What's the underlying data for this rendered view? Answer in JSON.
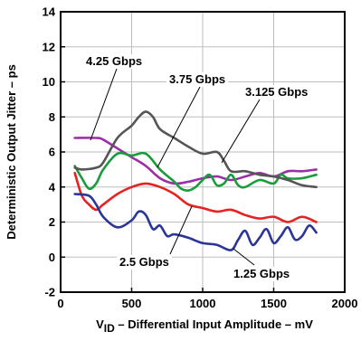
{
  "chart_data": {
    "type": "line",
    "xlabel": {
      "prefix": "V",
      "subscript": "ID",
      "suffix": " – Differential Input Amplitude – mV"
    },
    "ylabel": "Deterministic Output Jitter – ps",
    "xlim": [
      0,
      2000
    ],
    "ylim": [
      -2,
      14
    ],
    "xticks": [
      "0",
      "500",
      "1000",
      "1500",
      "2000"
    ],
    "yticks": [
      "-2",
      "0",
      "2",
      "4",
      "6",
      "8",
      "10",
      "12",
      "14"
    ],
    "xtick_values": [
      0,
      500,
      1000,
      1500,
      2000
    ],
    "ytick_values": [
      -2,
      0,
      2,
      4,
      6,
      8,
      10,
      12,
      14
    ],
    "grid": true,
    "series": [
      {
        "name": "4.25 Gbps",
        "color": "#9b2fa6",
        "x": [
          100,
          250,
          300,
          400,
          500,
          600,
          700,
          800,
          900,
          1000,
          1100,
          1200,
          1300,
          1400,
          1500,
          1600,
          1700,
          1800
        ],
        "y": [
          6.8,
          6.8,
          6.7,
          6.2,
          5.7,
          5.2,
          4.5,
          4.2,
          4.3,
          4.5,
          4.6,
          4.4,
          4.6,
          4.8,
          4.6,
          4.9,
          4.9,
          5.0
        ]
      },
      {
        "name": "3.75 Gbps",
        "color": "#1a9b3c",
        "x": [
          100,
          150,
          200,
          250,
          300,
          400,
          500,
          600,
          700,
          800,
          850,
          900,
          950,
          1000,
          1050,
          1100,
          1150,
          1200,
          1250,
          1300,
          1400,
          1500,
          1550,
          1600,
          1700,
          1800
        ],
        "y": [
          5.2,
          4.5,
          3.9,
          4.2,
          5.0,
          5.9,
          5.8,
          5.9,
          5.0,
          4.3,
          3.9,
          3.8,
          4.0,
          4.4,
          4.7,
          4.1,
          4.2,
          4.7,
          4.1,
          4.0,
          4.4,
          4.2,
          4.7,
          4.5,
          4.5,
          4.7
        ]
      },
      {
        "name": "3.125 Gbps",
        "color": "#555555",
        "x": [
          100,
          150,
          250,
          300,
          400,
          500,
          550,
          600,
          650,
          700,
          800,
          900,
          1000,
          1100,
          1150,
          1200,
          1300,
          1400,
          1500,
          1600,
          1700,
          1800
        ],
        "y": [
          5.1,
          5.0,
          5.1,
          5.4,
          6.8,
          7.5,
          8.0,
          8.3,
          8.0,
          7.3,
          6.8,
          6.3,
          5.9,
          6.0,
          5.5,
          4.9,
          4.9,
          4.7,
          4.6,
          4.4,
          4.1,
          4.0
        ]
      },
      {
        "name": "2.5 Gbps",
        "color": "#e62222",
        "x": [
          100,
          150,
          200,
          250,
          300,
          400,
          500,
          600,
          700,
          800,
          900,
          1000,
          1100,
          1200,
          1300,
          1400,
          1500,
          1600,
          1700,
          1800
        ],
        "y": [
          4.8,
          3.5,
          3.0,
          2.7,
          3.0,
          3.6,
          4.0,
          4.2,
          4.0,
          3.6,
          3.0,
          2.8,
          2.6,
          2.7,
          2.4,
          2.2,
          2.3,
          2.0,
          2.3,
          2.0
        ]
      },
      {
        "name": "1.25 Gbps",
        "color": "#2a3597",
        "x": [
          100,
          200,
          250,
          300,
          400,
          500,
          550,
          600,
          650,
          700,
          750,
          800,
          900,
          1000,
          1100,
          1200,
          1250,
          1300,
          1350,
          1400,
          1450,
          1500,
          1550,
          1600,
          1650,
          1700,
          1750,
          1800
        ],
        "y": [
          3.6,
          3.5,
          3.0,
          2.3,
          1.7,
          2.1,
          2.6,
          2.4,
          1.6,
          1.8,
          1.2,
          1.3,
          1.1,
          0.8,
          0.7,
          0.4,
          1.0,
          1.5,
          0.7,
          1.1,
          1.6,
          0.8,
          1.2,
          1.7,
          1.0,
          1.2,
          1.8,
          1.4
        ]
      }
    ],
    "labels": [
      {
        "text": "4.25 Gbps",
        "series": "4.25 Gbps"
      },
      {
        "text": "3.75 Gbps",
        "series": "3.75 Gbps"
      },
      {
        "text": "3.125 Gbps",
        "series": "3.125 Gbps"
      },
      {
        "text": "2.5 Gbps",
        "series": "2.5 Gbps"
      },
      {
        "text": "1.25 Gbps",
        "series": "1.25 Gbps"
      }
    ]
  }
}
